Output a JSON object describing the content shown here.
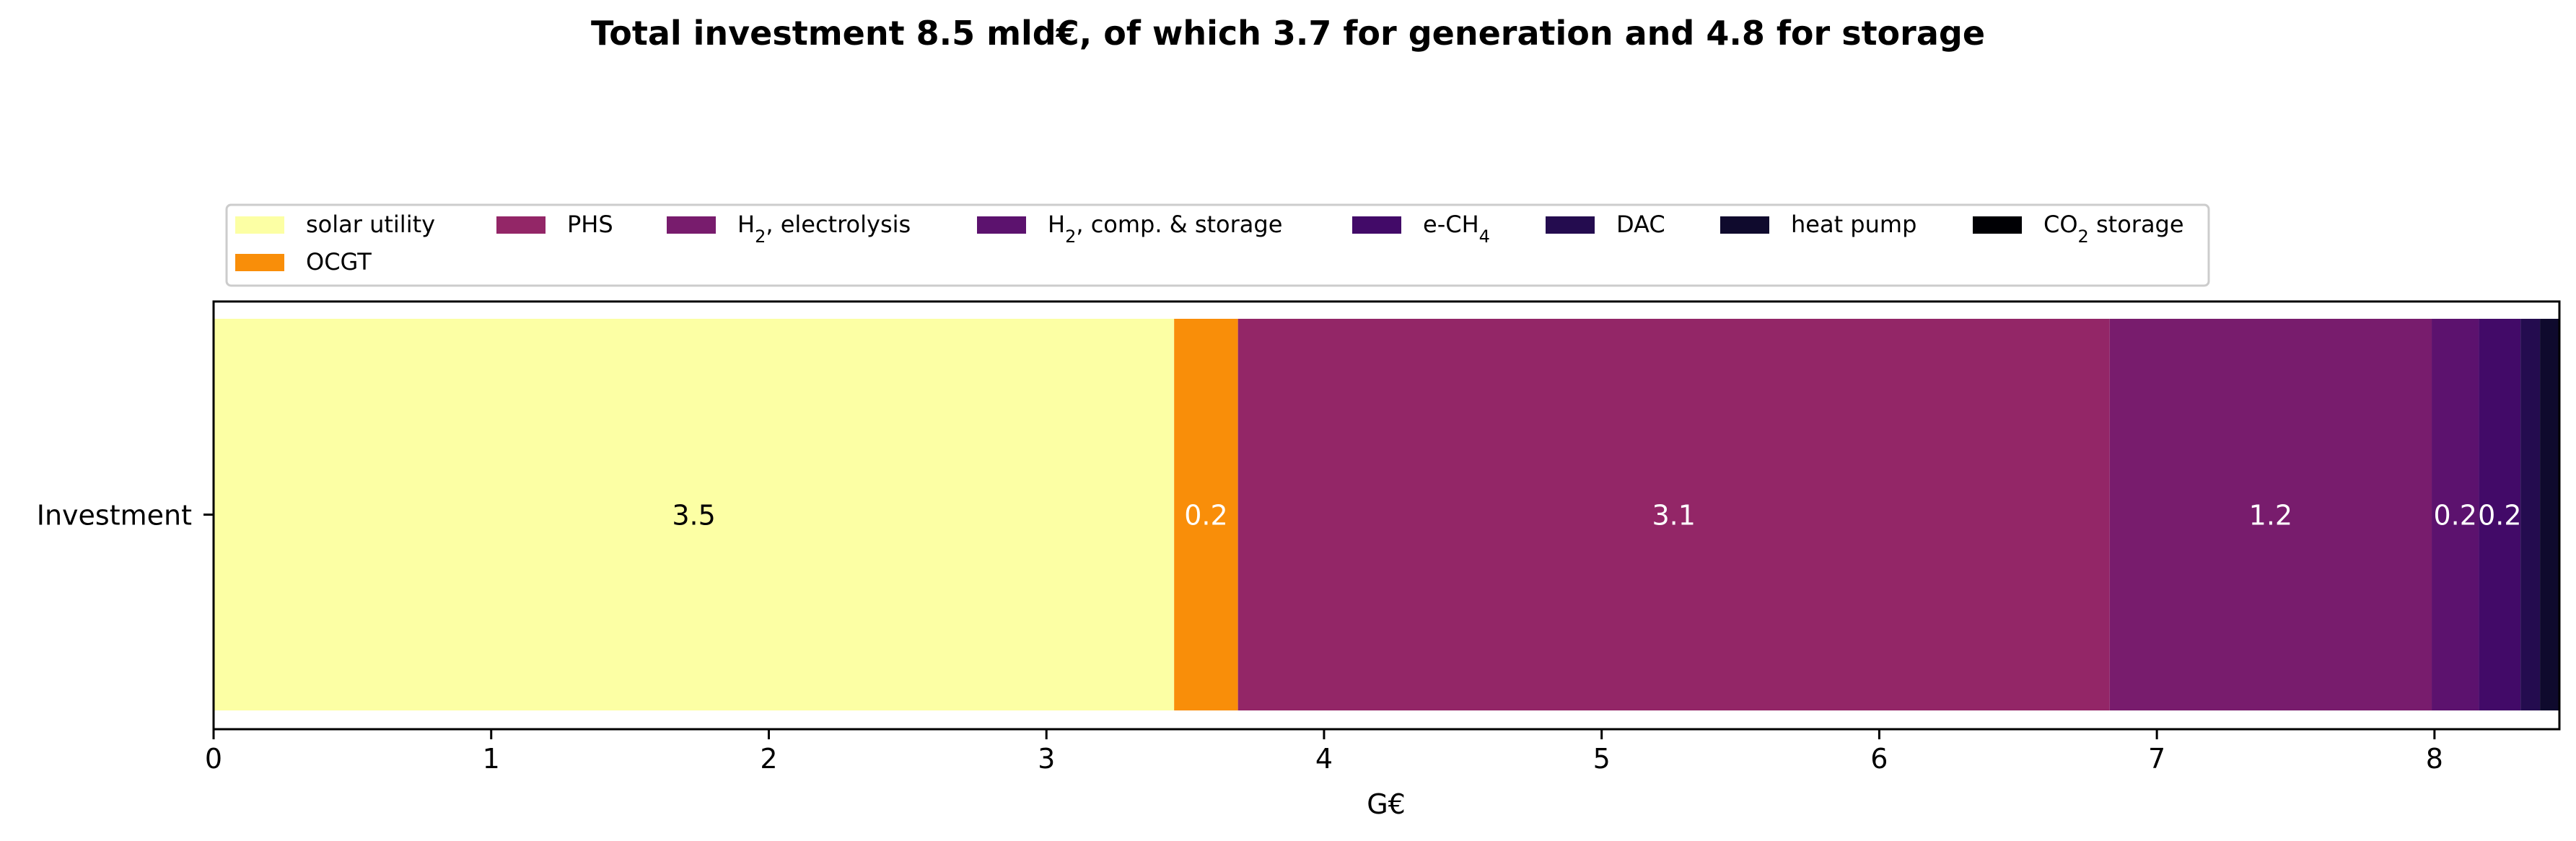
{
  "chart_data": {
    "type": "bar",
    "orientation": "horizontal",
    "stacked": true,
    "title": "Total investment 8.5 mld€, of which 3.7 for generation and 4.8 for storage",
    "xlabel": "G€",
    "ylabel": "",
    "categories": [
      "Investment"
    ],
    "xlim": [
      0,
      8.45
    ],
    "xticks": [
      "0",
      "1",
      "2",
      "3",
      "4",
      "5",
      "6",
      "7",
      "8"
    ],
    "grid": false,
    "legend_placement": "top-left, above plot",
    "series": [
      {
        "name": "solar utility",
        "values": [
          3.46
        ],
        "label": "3.5",
        "color": "#fcffa4",
        "label_color": "#000000"
      },
      {
        "name": "OCGT",
        "values": [
          0.23
        ],
        "label": "0.2",
        "color": "#f98e09",
        "label_color": "#ffffff"
      },
      {
        "name": "PHS",
        "values": [
          3.14
        ],
        "label": "3.1",
        "color": "#932667",
        "label_color": "#ffffff"
      },
      {
        "name": "H2, electrolysis",
        "values": [
          1.16
        ],
        "label": "1.2",
        "color": "#781c6d",
        "label_color": "#ffffff"
      },
      {
        "name": "H2, comp. & storage",
        "values": [
          0.17
        ],
        "label": "0.2",
        "color": "#5c126e",
        "label_color": "#ffffff"
      },
      {
        "name": "e-CH4",
        "values": [
          0.15
        ],
        "label": "0.2",
        "color": "#420a68",
        "label_color": "#ffffff"
      },
      {
        "name": "DAC",
        "values": [
          0.07
        ],
        "label": "",
        "color": "#240c4f",
        "label_color": "#ffffff"
      },
      {
        "name": "heat pump",
        "values": [
          0.07
        ],
        "label": "",
        "color": "#0f0a2d",
        "label_color": "#ffffff"
      },
      {
        "name": "CO2 storage",
        "values": [
          0.0
        ],
        "label": "",
        "color": "#000004",
        "label_color": "#ffffff"
      }
    ]
  }
}
